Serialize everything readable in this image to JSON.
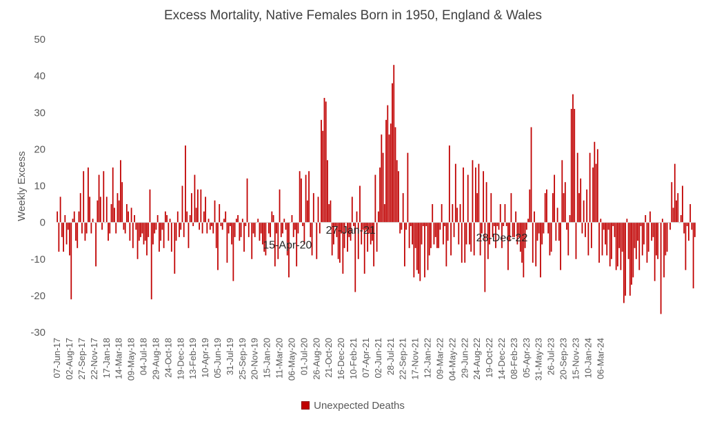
{
  "chart_data": {
    "type": "bar",
    "title": "Excess Mortality, Native Females Born in 1950, England & Wales",
    "ylabel": "Weekly Excess",
    "ylim": [
      -30,
      50
    ],
    "y_ticks": [
      50,
      40,
      30,
      20,
      10,
      0,
      -10,
      -20,
      -30
    ],
    "grid": false,
    "legend_position": "bottom",
    "series": [
      {
        "name": "Unexpected Deaths",
        "color": "#c00000",
        "values": [
          3,
          -8,
          7,
          -4,
          -8,
          2,
          -6,
          -2,
          -9,
          -21,
          1,
          3,
          -5,
          -7,
          3,
          8,
          -3,
          14,
          -5,
          -3,
          15,
          7,
          -3,
          1,
          0,
          -12,
          6,
          13,
          7,
          -2,
          14,
          0,
          7,
          -5,
          -3,
          5,
          15,
          4,
          -3,
          8,
          6,
          17,
          11,
          -2,
          -3,
          5,
          3,
          -5,
          4,
          -7,
          2,
          -2,
          -10,
          -5,
          -4,
          -3,
          -6,
          -5,
          -9,
          -4,
          9,
          -21,
          -6,
          -3,
          -2,
          2,
          -8,
          -5,
          -2,
          -7,
          3,
          2,
          -5,
          1,
          -8,
          0,
          -14,
          -5,
          3,
          -4,
          -2,
          10,
          -4,
          21,
          3,
          -7,
          2,
          8,
          -1,
          13,
          4,
          9,
          -2,
          9,
          -3,
          3,
          7,
          -3,
          1,
          -2,
          -1,
          -3,
          6,
          -7,
          -13,
          5,
          -1,
          -2,
          1,
          3,
          -11,
          -3,
          -1,
          -6,
          -16,
          -4,
          1,
          2,
          -5,
          -4,
          1,
          -8,
          -1,
          12,
          -4,
          0,
          -10,
          -3,
          -4,
          0,
          1,
          -5,
          -3,
          -6,
          -8,
          -9,
          0,
          -3,
          -4,
          3,
          2,
          -12,
          -3,
          -10,
          9,
          -4,
          -3,
          1,
          -2,
          -9,
          -15,
          0,
          2,
          -4,
          -2,
          -12,
          -3,
          14,
          12,
          -1,
          -6,
          13,
          6,
          14,
          -4,
          -9,
          8,
          0,
          -10,
          7,
          -3,
          28,
          25,
          34,
          33,
          17,
          5,
          6,
          -9,
          -6,
          -1,
          -4,
          -10,
          -11,
          -3,
          -14,
          -7,
          0,
          -8,
          -4,
          -5,
          7,
          -1,
          -19,
          3,
          -10,
          10,
          -6,
          -2,
          -14,
          -2,
          -8,
          -3,
          -6,
          -5,
          -12,
          13,
          -8,
          3,
          15,
          24,
          19,
          5,
          28,
          32,
          24,
          27,
          38,
          43,
          26,
          17,
          14,
          -3,
          -2,
          8,
          -12,
          -2,
          19,
          -7,
          -1,
          -6,
          -15,
          -7,
          -13,
          -14,
          -16,
          -6,
          -1,
          -15,
          -1,
          -13,
          -9,
          -7,
          5,
          -6,
          -4,
          -7,
          -7,
          -2,
          5,
          -6,
          -1,
          -12,
          -5,
          21,
          -9,
          5,
          -4,
          16,
          4,
          -6,
          5,
          -11,
          15,
          -11,
          -6,
          13,
          -6,
          -8,
          17,
          -9,
          15,
          8,
          16,
          -9,
          -3,
          14,
          -19,
          11,
          -10,
          -6,
          8,
          -4,
          -1,
          -7,
          -1,
          -2,
          5,
          -7,
          -1,
          5,
          -1,
          -13,
          -5,
          8,
          -4,
          -4,
          3,
          -6,
          -4,
          -8,
          -11,
          -15,
          -7,
          -2,
          1,
          9,
          26,
          -11,
          3,
          -12,
          -5,
          -3,
          -15,
          -6,
          -3,
          8,
          9,
          -3,
          -9,
          -8,
          8,
          13,
          -5,
          4,
          -5,
          -13,
          17,
          8,
          11,
          -2,
          -9,
          2,
          31,
          35,
          31,
          -10,
          19,
          8,
          12,
          -3,
          6,
          -4,
          9,
          -9,
          19,
          -7,
          15,
          22,
          16,
          20,
          -11,
          1,
          -9,
          -2,
          -6,
          -9,
          -2,
          -12,
          -10,
          -1,
          -4,
          -13,
          -12,
          -7,
          -13,
          -8,
          -22,
          -20,
          1,
          -10,
          -20,
          -17,
          -15,
          -7,
          -10,
          -5,
          -13,
          -1,
          -9,
          -6,
          2,
          -11,
          -8,
          3,
          -5,
          -4,
          -16,
          -9,
          -10,
          0,
          -25,
          1,
          -15,
          -9,
          -8,
          0,
          -2,
          11,
          4,
          16,
          6,
          8,
          0,
          2,
          10,
          -3,
          -13,
          -1,
          -5,
          5,
          -2,
          -18,
          -4
        ]
      }
    ],
    "x_tick_labels": [
      "07-Jun-17",
      "02-Aug-17",
      "27-Sep-17",
      "22-Nov-17",
      "17-Jan-18",
      "14-Mar-18",
      "09-May-18",
      "04-Jul-18",
      "29-Aug-18",
      "24-Oct-18",
      "19-Dec-18",
      "13-Feb-19",
      "10-Apr-19",
      "05-Jun-19",
      "31-Jul-19",
      "25-Sep-19",
      "20-Nov-19",
      "15-Jan-20",
      "11-Mar-20",
      "06-May-20",
      "01-Jul-20",
      "26-Aug-20",
      "21-Oct-20",
      "16-Dec-20",
      "10-Feb-21",
      "07-Apr-21",
      "02-Jun-21",
      "28-Jul-21",
      "22-Sep-21",
      "17-Nov-21",
      "12-Jan-22",
      "09-Mar-22",
      "04-May-22",
      "29-Jun-22",
      "24-Aug-22",
      "19-Oct-22",
      "14-Dec-22",
      "08-Feb-23",
      "05-Apr-23",
      "31-May-23",
      "26-Jul-23",
      "20-Sep-23",
      "15-Nov-23",
      "10-Jan-24",
      "06-Mar-24"
    ],
    "x_tick_every_weeks": 8,
    "annotations": [
      {
        "text": "15-Apr-20",
        "week_index": 149
      },
      {
        "text": "27-Jan-21",
        "week_index": 190
      },
      {
        "text": "28-Dec-22",
        "week_index": 288
      }
    ]
  }
}
